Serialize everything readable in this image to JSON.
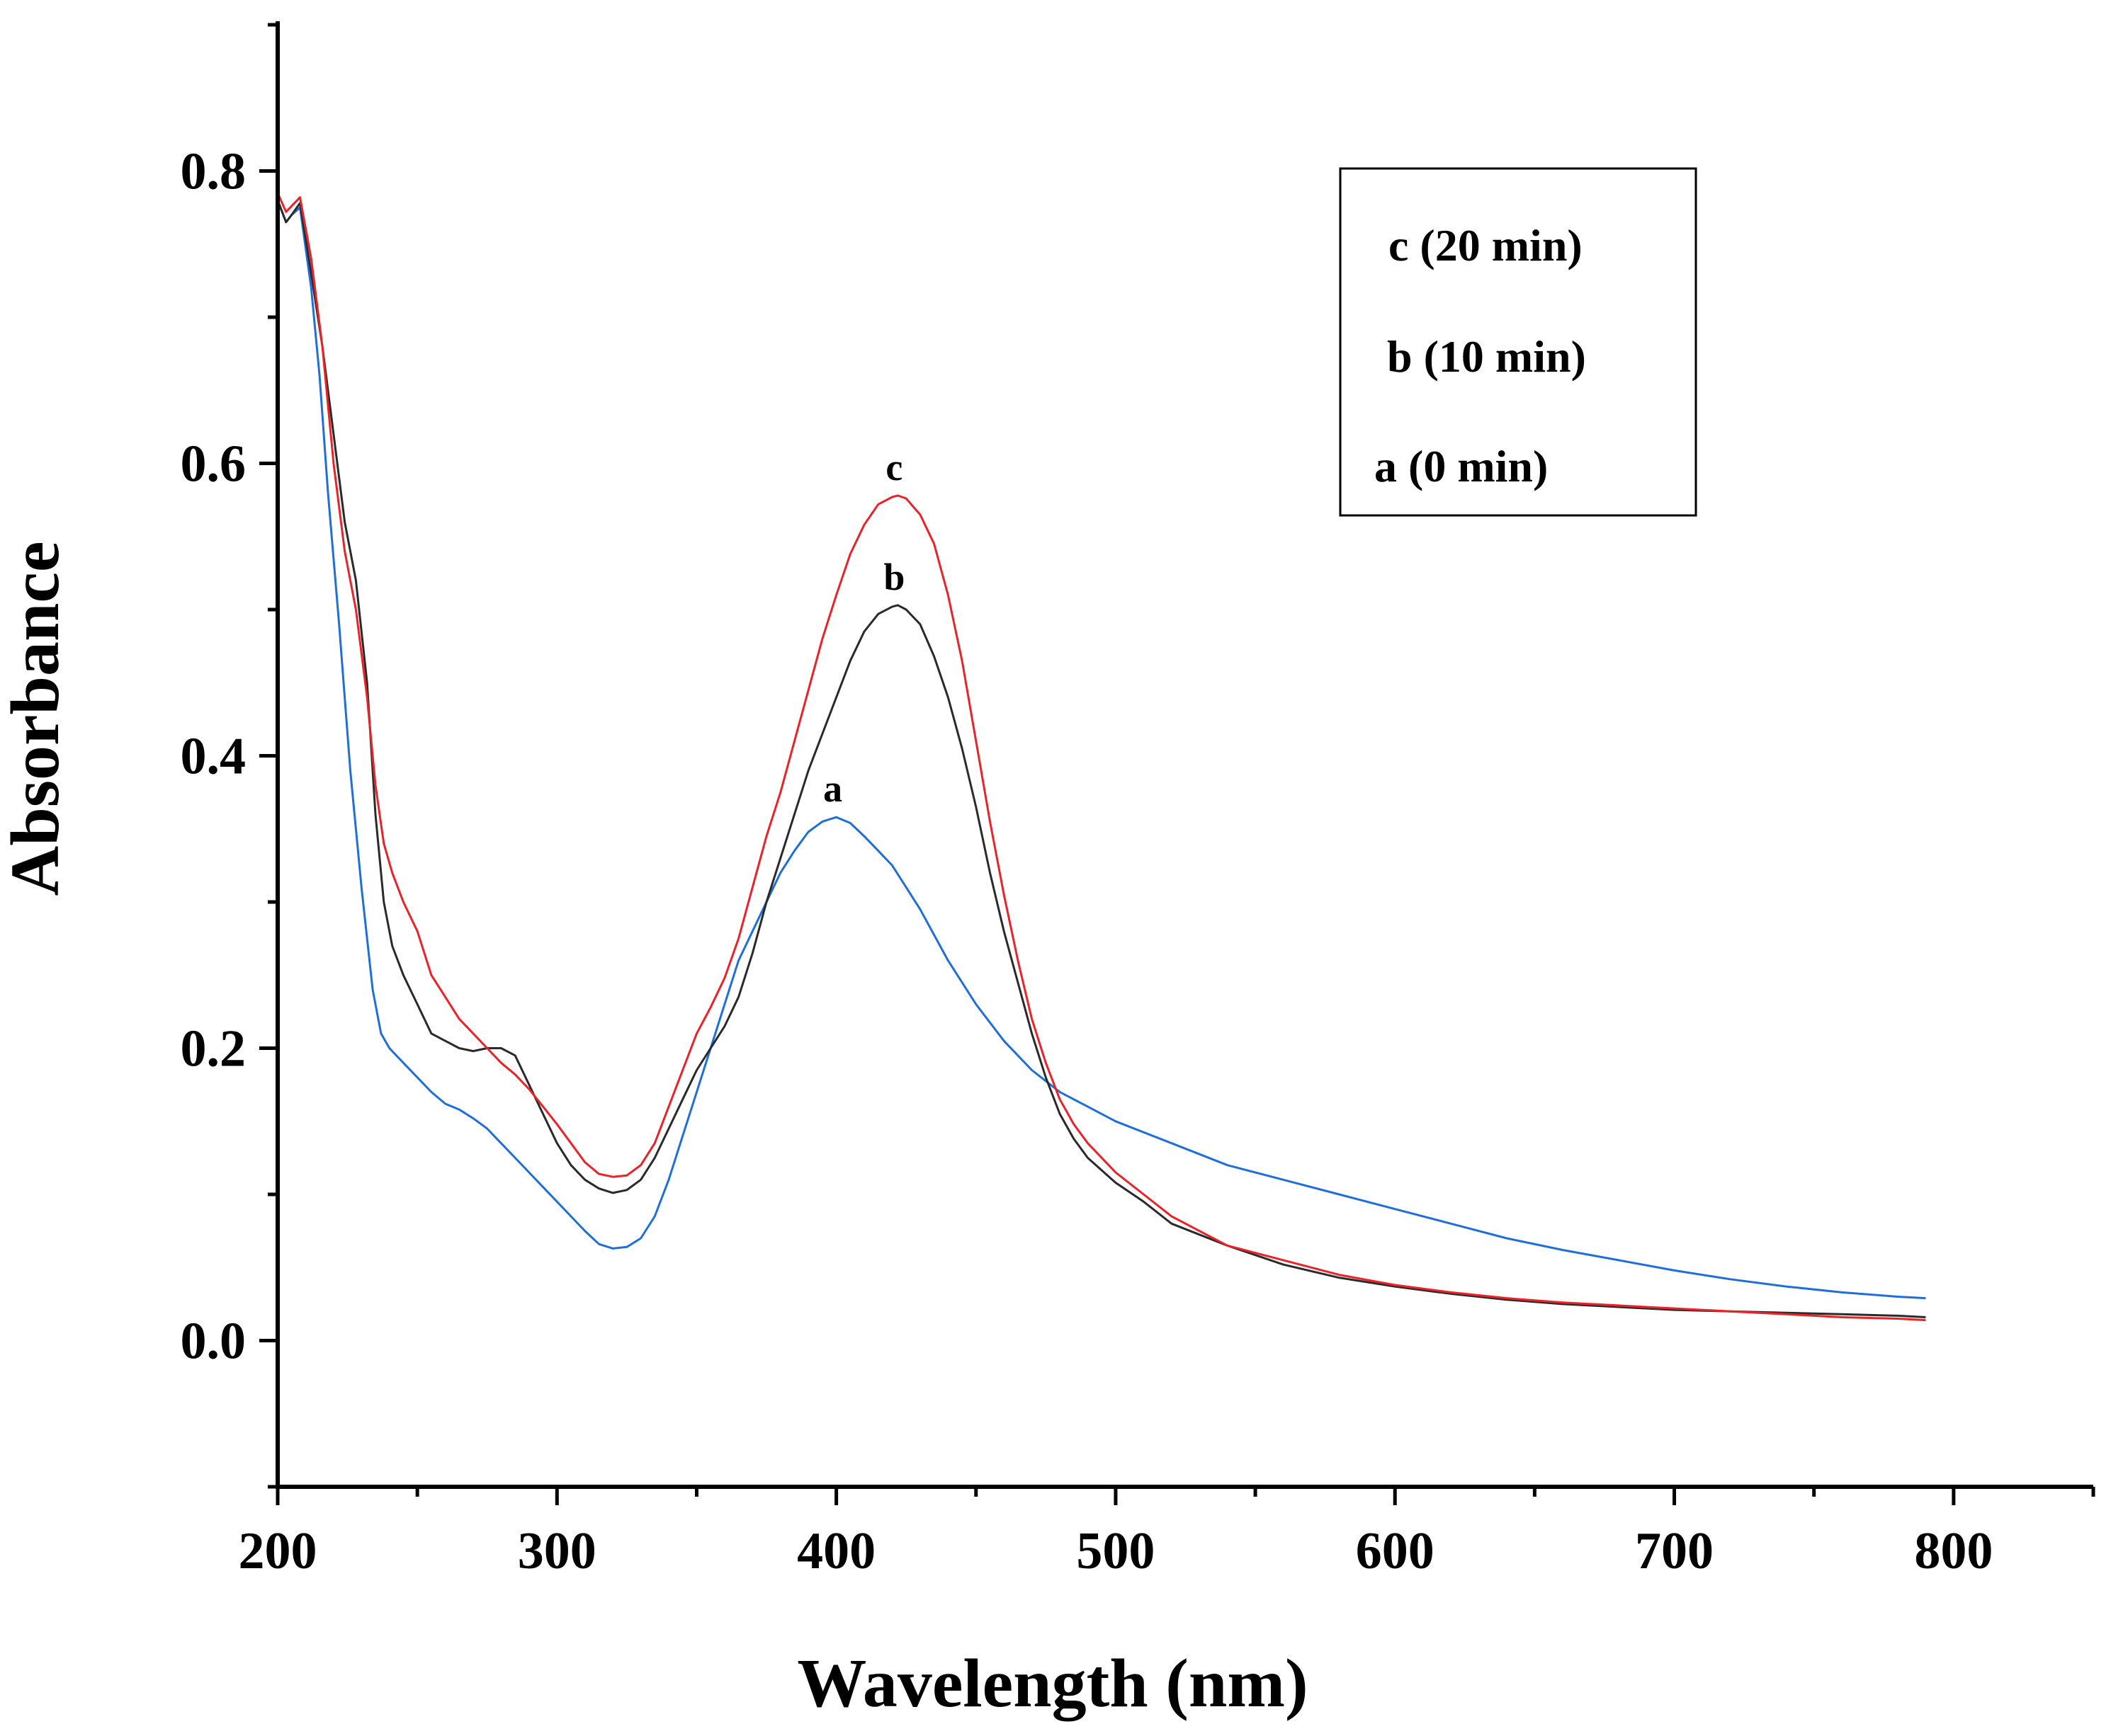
{
  "chart_data": {
    "type": "line",
    "title": "",
    "xlabel": "Wavelength (nm)",
    "ylabel": "Absorbance",
    "xlim": [
      200,
      850
    ],
    "ylim": [
      -0.1,
      0.9
    ],
    "xticks": [
      200,
      300,
      400,
      500,
      600,
      700,
      800
    ],
    "xtick_labels": [
      "200",
      "300",
      "400",
      "500",
      "600",
      "700",
      "800"
    ],
    "yticks": [
      0.0,
      0.2,
      0.4,
      0.6,
      0.8
    ],
    "ytick_labels": [
      "0.0",
      "0.2",
      "0.4",
      "0.6",
      "0.8"
    ],
    "grid": false,
    "legend_position": "top-right",
    "legend": [
      "c (20 min)",
      "b (10 min)",
      "a (0 min)"
    ],
    "series": [
      {
        "name": "a (0 min)",
        "label": "a",
        "color": "#1f6fd6",
        "peak": [
          400,
          0.358
        ],
        "x": [
          200,
          203,
          205,
          208,
          212,
          215,
          218,
          222,
          226,
          230,
          234,
          237,
          240,
          245,
          250,
          255,
          260,
          265,
          270,
          275,
          280,
          285,
          290,
          295,
          300,
          305,
          310,
          315,
          320,
          325,
          330,
          335,
          340,
          345,
          350,
          355,
          360,
          365,
          370,
          375,
          380,
          385,
          390,
          395,
          400,
          405,
          410,
          415,
          420,
          425,
          430,
          440,
          450,
          460,
          470,
          480,
          490,
          500,
          520,
          540,
          560,
          580,
          600,
          620,
          640,
          660,
          680,
          700,
          720,
          740,
          760,
          780,
          790
        ],
        "values": [
          0.78,
          0.765,
          0.77,
          0.775,
          0.72,
          0.66,
          0.58,
          0.49,
          0.39,
          0.31,
          0.24,
          0.21,
          0.2,
          0.19,
          0.18,
          0.17,
          0.162,
          0.158,
          0.152,
          0.145,
          0.135,
          0.125,
          0.115,
          0.105,
          0.095,
          0.085,
          0.075,
          0.066,
          0.063,
          0.064,
          0.07,
          0.085,
          0.11,
          0.14,
          0.17,
          0.2,
          0.23,
          0.26,
          0.28,
          0.3,
          0.32,
          0.335,
          0.348,
          0.355,
          0.358,
          0.354,
          0.345,
          0.335,
          0.325,
          0.31,
          0.295,
          0.26,
          0.23,
          0.205,
          0.185,
          0.17,
          0.16,
          0.15,
          0.135,
          0.12,
          0.11,
          0.1,
          0.09,
          0.08,
          0.07,
          0.062,
          0.055,
          0.048,
          0.042,
          0.037,
          0.033,
          0.03,
          0.029
        ]
      },
      {
        "name": "b (10 min)",
        "label": "b",
        "color": "#2a2a2a",
        "peak": [
          422,
          0.503
        ],
        "x": [
          200,
          203,
          205,
          208,
          212,
          216,
          220,
          224,
          228,
          232,
          235,
          238,
          241,
          245,
          250,
          255,
          260,
          265,
          270,
          275,
          280,
          285,
          290,
          295,
          300,
          305,
          310,
          315,
          320,
          325,
          330,
          335,
          340,
          345,
          350,
          355,
          360,
          365,
          370,
          375,
          380,
          385,
          390,
          395,
          400,
          405,
          410,
          415,
          420,
          422,
          425,
          430,
          435,
          440,
          445,
          450,
          455,
          460,
          465,
          470,
          475,
          480,
          485,
          490,
          500,
          510,
          520,
          540,
          560,
          580,
          600,
          620,
          640,
          660,
          680,
          700,
          720,
          740,
          760,
          780,
          790
        ],
        "values": [
          0.78,
          0.765,
          0.77,
          0.778,
          0.73,
          0.68,
          0.62,
          0.56,
          0.52,
          0.45,
          0.36,
          0.3,
          0.27,
          0.25,
          0.23,
          0.21,
          0.205,
          0.2,
          0.198,
          0.2,
          0.2,
          0.195,
          0.175,
          0.155,
          0.135,
          0.12,
          0.11,
          0.104,
          0.101,
          0.103,
          0.11,
          0.125,
          0.145,
          0.165,
          0.185,
          0.2,
          0.215,
          0.235,
          0.265,
          0.3,
          0.33,
          0.36,
          0.39,
          0.415,
          0.44,
          0.465,
          0.485,
          0.497,
          0.502,
          0.503,
          0.5,
          0.49,
          0.468,
          0.44,
          0.405,
          0.365,
          0.32,
          0.28,
          0.245,
          0.21,
          0.18,
          0.155,
          0.138,
          0.125,
          0.108,
          0.095,
          0.08,
          0.065,
          0.052,
          0.043,
          0.037,
          0.032,
          0.028,
          0.025,
          0.023,
          0.021,
          0.02,
          0.019,
          0.018,
          0.017,
          0.016
        ]
      },
      {
        "name": "c (20 min)",
        "label": "c",
        "color": "#e8232a",
        "peak": [
          422,
          0.578
        ],
        "x": [
          200,
          203,
          205,
          208,
          212,
          216,
          220,
          224,
          228,
          232,
          235,
          238,
          241,
          245,
          250,
          255,
          260,
          265,
          270,
          275,
          280,
          285,
          290,
          295,
          300,
          305,
          310,
          315,
          320,
          325,
          330,
          335,
          340,
          345,
          350,
          355,
          360,
          365,
          370,
          375,
          380,
          385,
          390,
          395,
          400,
          405,
          410,
          415,
          420,
          422,
          425,
          430,
          435,
          440,
          445,
          450,
          455,
          460,
          465,
          470,
          475,
          480,
          485,
          490,
          500,
          510,
          520,
          540,
          560,
          580,
          600,
          620,
          640,
          660,
          680,
          700,
          720,
          740,
          760,
          780,
          790
        ],
        "values": [
          0.785,
          0.772,
          0.776,
          0.782,
          0.74,
          0.68,
          0.6,
          0.54,
          0.5,
          0.44,
          0.38,
          0.34,
          0.32,
          0.3,
          0.28,
          0.25,
          0.235,
          0.22,
          0.21,
          0.2,
          0.19,
          0.182,
          0.172,
          0.16,
          0.148,
          0.135,
          0.122,
          0.114,
          0.112,
          0.113,
          0.12,
          0.135,
          0.16,
          0.185,
          0.21,
          0.228,
          0.248,
          0.275,
          0.31,
          0.345,
          0.375,
          0.41,
          0.445,
          0.48,
          0.51,
          0.538,
          0.558,
          0.572,
          0.577,
          0.578,
          0.576,
          0.565,
          0.545,
          0.51,
          0.465,
          0.41,
          0.355,
          0.305,
          0.26,
          0.22,
          0.19,
          0.165,
          0.148,
          0.135,
          0.115,
          0.1,
          0.085,
          0.065,
          0.055,
          0.045,
          0.038,
          0.033,
          0.029,
          0.026,
          0.024,
          0.022,
          0.02,
          0.018,
          0.016,
          0.015,
          0.014
        ]
      }
    ]
  }
}
